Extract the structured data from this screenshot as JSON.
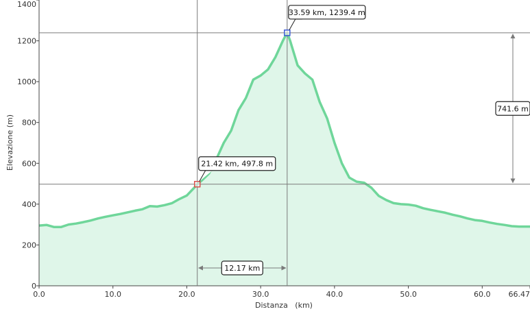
{
  "chart_data": {
    "type": "area",
    "xlabel": "Distanza   (km)",
    "ylabel": "Elevazione (m)",
    "xlim": [
      0,
      66.47
    ],
    "ylim": [
      0,
      1400
    ],
    "x_ticks": [
      0,
      10,
      20,
      30,
      40,
      50,
      60,
      66.47
    ],
    "x_tick_labels": [
      "0.0",
      "10.0",
      "20.0",
      "30.0",
      "40.0",
      "50.0",
      "60.0",
      "66.47"
    ],
    "y_ticks": [
      0,
      200,
      400,
      600,
      800,
      1000,
      1200,
      1400
    ],
    "y_tick_labels": [
      "0",
      "200",
      "400",
      "600",
      "800",
      "1000",
      "1200",
      "1400"
    ],
    "grid": false,
    "colors": {
      "line": "#6fd69a",
      "fill": "#dff6e9",
      "marker_start": "#d9534f",
      "marker_end": "#3b5bd6",
      "guide": "#7a7a7a"
    },
    "series": [
      {
        "x": [
          0,
          1,
          2,
          3,
          4,
          5,
          6,
          7,
          8,
          9,
          10,
          11,
          12,
          13,
          14,
          15,
          16,
          17,
          18,
          19,
          20,
          21,
          21.42,
          22,
          23,
          24,
          25,
          26,
          27,
          28,
          29,
          30,
          31,
          32,
          33,
          33.59,
          34,
          35,
          36,
          37,
          38,
          39,
          40,
          41,
          42,
          43,
          44,
          45,
          46,
          47,
          48,
          49,
          50,
          51,
          52,
          53,
          54,
          55,
          56,
          57,
          58,
          59,
          60,
          61,
          62,
          63,
          64,
          65,
          66.47
        ],
        "y": [
          295,
          298,
          288,
          288,
          300,
          305,
          312,
          320,
          330,
          338,
          345,
          352,
          360,
          368,
          375,
          390,
          388,
          395,
          405,
          425,
          442,
          480,
          497.8,
          515,
          550,
          620,
          700,
          760,
          860,
          920,
          1010,
          1030,
          1060,
          1120,
          1200,
          1239.4,
          1200,
          1080,
          1040,
          1010,
          900,
          820,
          700,
          600,
          530,
          510,
          505,
          480,
          440,
          420,
          405,
          400,
          398,
          392,
          380,
          372,
          365,
          358,
          348,
          340,
          330,
          322,
          318,
          310,
          303,
          298,
          292,
          290,
          290
        ]
      }
    ],
    "markers": [
      {
        "x": 21.42,
        "y": 497.8,
        "label": "21.42 km, 497.8 m"
      },
      {
        "x": 33.59,
        "y": 1239.4,
        "label": "33.59 km, 1239.4 m"
      }
    ],
    "measure_distance": {
      "value": 12.17,
      "label": "12.17 km"
    },
    "measure_elevation": {
      "value": 741.6,
      "label": "741.6 m"
    }
  }
}
